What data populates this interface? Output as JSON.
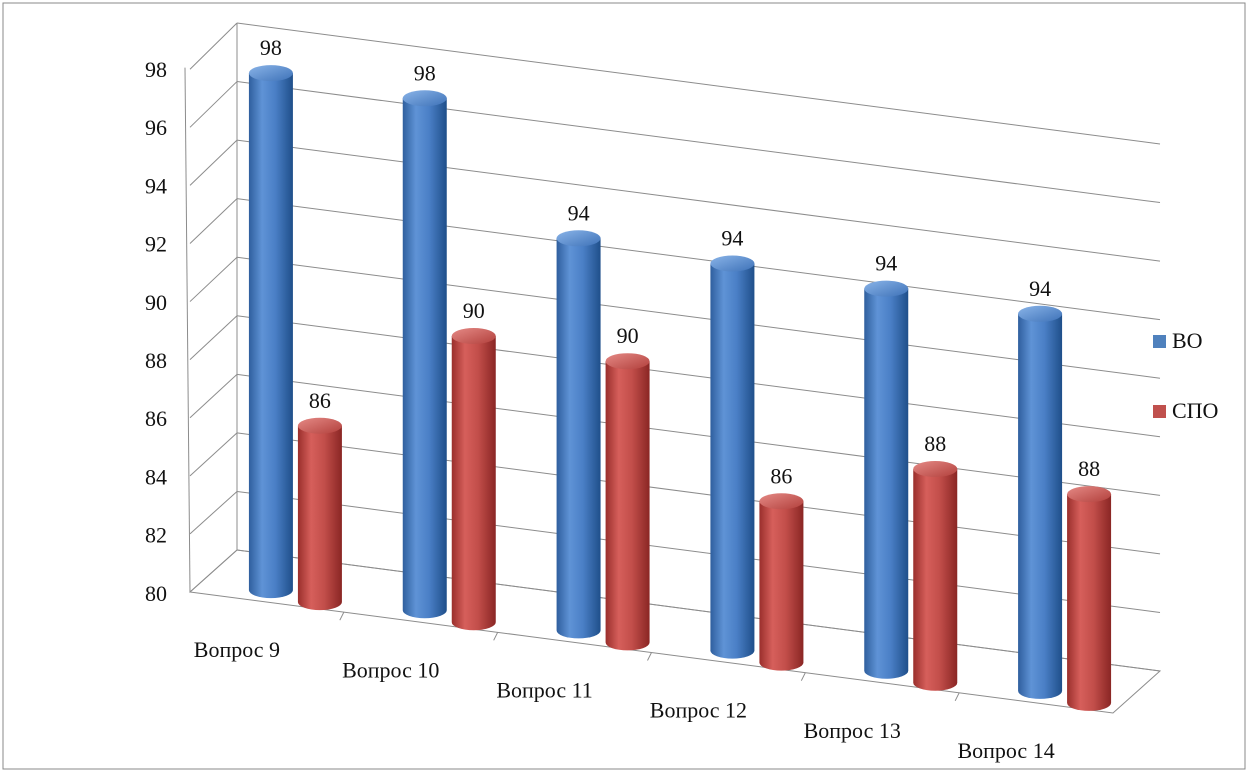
{
  "chart_data": {
    "type": "bar",
    "style": "3d-cylinder",
    "categories": [
      "Вопрос 9",
      "Вопрос 10",
      "Вопрос 11",
      "Вопрос 12",
      "Вопрос 13",
      "Вопрос 14"
    ],
    "series": [
      {
        "name": "ВО",
        "values": [
          98,
          98,
          94,
          94,
          94,
          94
        ],
        "color": "#4f81bd"
      },
      {
        "name": "СПО",
        "values": [
          86,
          90,
          90,
          86,
          88,
          88
        ],
        "color": "#c0504d"
      }
    ],
    "y_ticks": [
      "98",
      "96",
      "94",
      "92",
      "90",
      "88",
      "86",
      "84",
      "82",
      "80"
    ],
    "ylim": [
      80,
      98
    ],
    "grid": true,
    "legend": "right"
  }
}
